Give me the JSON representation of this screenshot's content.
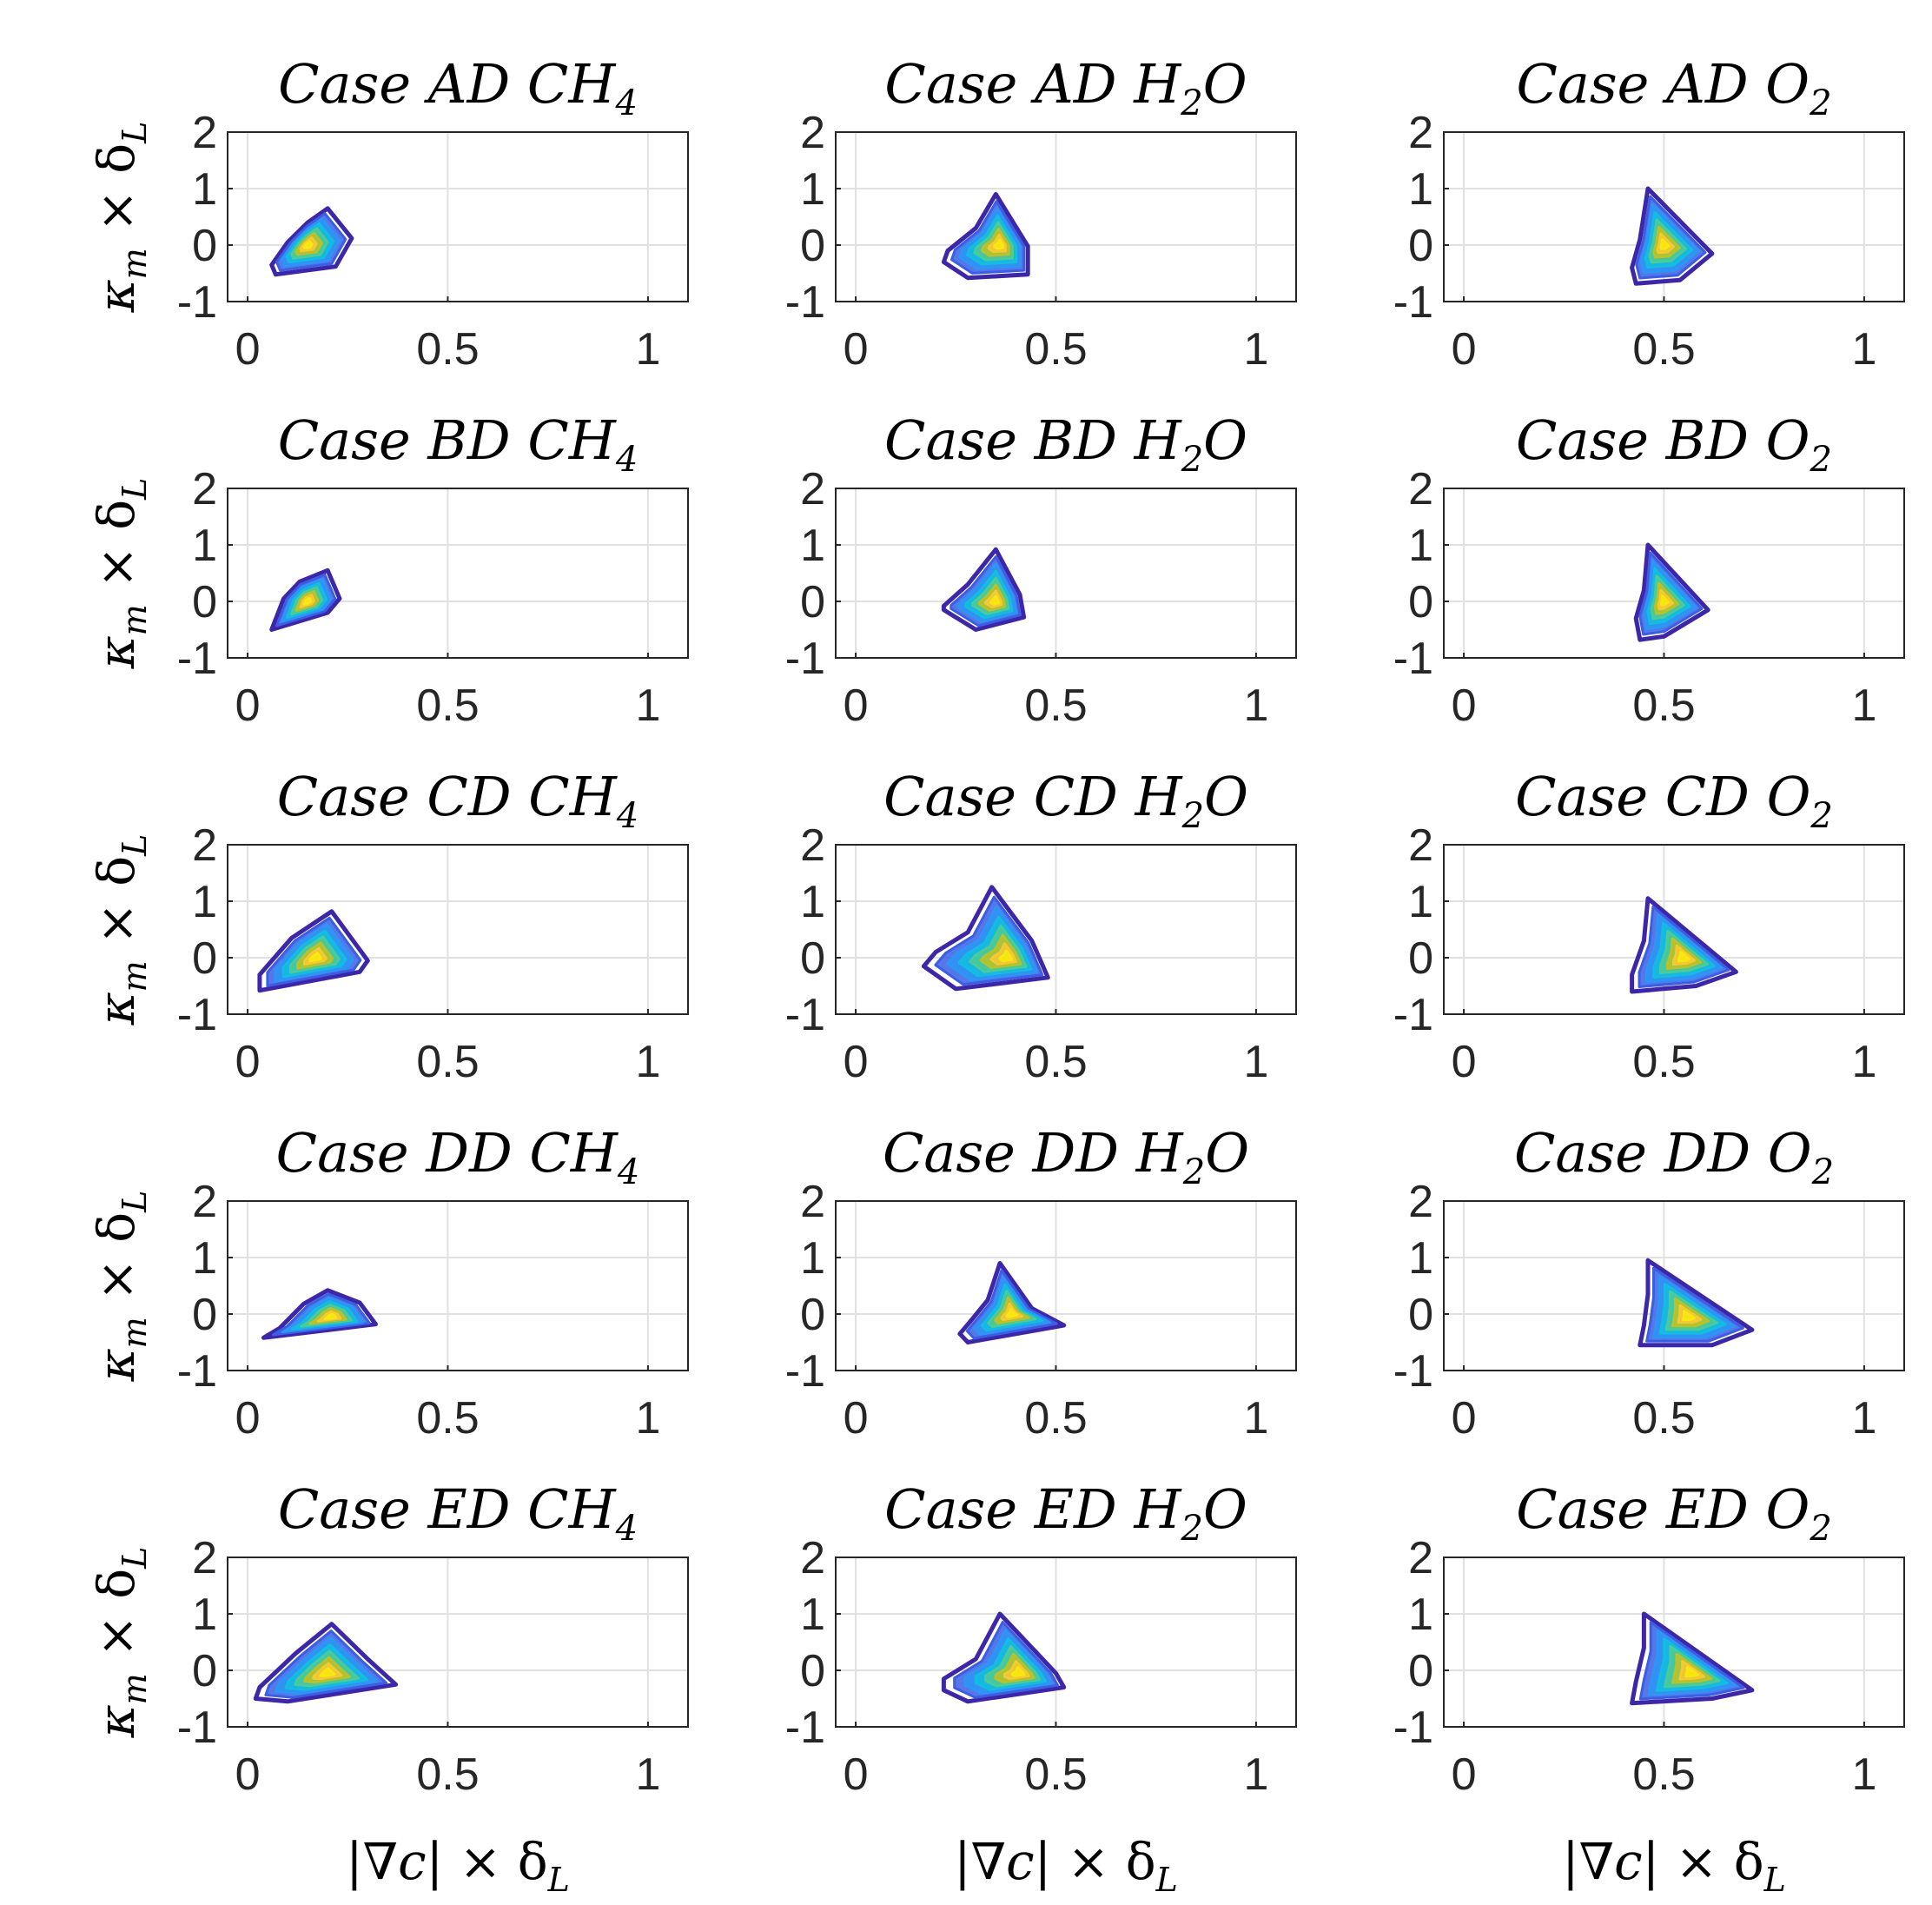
{
  "chart_data": {
    "type": "contour",
    "layout": {
      "rows": 5,
      "cols": 3
    },
    "xlim": [
      -0.05,
      1.1
    ],
    "ylim": [
      -1,
      2
    ],
    "xticks": [
      0,
      0.5,
      1
    ],
    "xtick_labels": [
      "0",
      "0.5",
      "1"
    ],
    "yticks": [
      -1,
      0,
      1,
      2
    ],
    "ytick_labels": [
      "-1",
      "0",
      "1",
      "2"
    ],
    "grid": true,
    "ylabel": {
      "main": "κ",
      "main_sub": "m",
      "times": " × δ",
      "sub": "L"
    },
    "xlabel": {
      "main": "|∇c|",
      "times": " × δ",
      "sub": "L"
    },
    "colormap": [
      "#3e26a8",
      "#3a5fe4",
      "#2c95f5",
      "#13bde0",
      "#4ccb96",
      "#bbc229",
      "#f6c834",
      "#f9e80f"
    ],
    "panels": [
      {
        "title": "Case AD CH",
        "sub": "4",
        "suffix": "",
        "row": 0,
        "col": 0,
        "center": [
          0.15,
          0.0
        ],
        "outer": [
          [
            0.07,
            -0.52
          ],
          [
            0.22,
            -0.38
          ],
          [
            0.26,
            0.12
          ],
          [
            0.2,
            0.65
          ],
          [
            0.15,
            0.4
          ],
          [
            0.1,
            0.05
          ],
          [
            0.06,
            -0.35
          ]
        ]
      },
      {
        "title": "Case AD H",
        "sub": "2",
        "suffix": "O",
        "row": 0,
        "col": 1,
        "center": [
          0.36,
          0.0
        ],
        "outer": [
          [
            0.22,
            -0.3
          ],
          [
            0.28,
            -0.58
          ],
          [
            0.43,
            -0.52
          ],
          [
            0.43,
            -0.02
          ],
          [
            0.35,
            0.9
          ],
          [
            0.3,
            0.3
          ],
          [
            0.23,
            -0.1
          ]
        ]
      },
      {
        "title": "Case AD O",
        "sub": "2",
        "suffix": "",
        "row": 0,
        "col": 2,
        "center": [
          0.5,
          0.0
        ],
        "outer": [
          [
            0.46,
            1.0
          ],
          [
            0.62,
            -0.15
          ],
          [
            0.54,
            -0.62
          ],
          [
            0.43,
            -0.68
          ],
          [
            0.42,
            -0.4
          ],
          [
            0.44,
            0.1
          ]
        ]
      },
      {
        "title": "Case BD CH",
        "sub": "4",
        "suffix": "",
        "row": 1,
        "col": 0,
        "center": [
          0.15,
          0.0
        ],
        "outer": [
          [
            0.06,
            -0.5
          ],
          [
            0.2,
            -0.2
          ],
          [
            0.23,
            0.05
          ],
          [
            0.2,
            0.55
          ],
          [
            0.13,
            0.35
          ],
          [
            0.09,
            0.05
          ]
        ]
      },
      {
        "title": "Case BD H",
        "sub": "2",
        "suffix": "O",
        "row": 1,
        "col": 1,
        "center": [
          0.35,
          0.0
        ],
        "outer": [
          [
            0.22,
            -0.15
          ],
          [
            0.3,
            -0.5
          ],
          [
            0.42,
            -0.28
          ],
          [
            0.41,
            0.12
          ],
          [
            0.35,
            0.92
          ],
          [
            0.28,
            0.3
          ],
          [
            0.22,
            -0.08
          ]
        ]
      },
      {
        "title": "Case BD O",
        "sub": "2",
        "suffix": "",
        "row": 1,
        "col": 2,
        "center": [
          0.5,
          0.0
        ],
        "outer": [
          [
            0.46,
            1.0
          ],
          [
            0.61,
            -0.15
          ],
          [
            0.5,
            -0.62
          ],
          [
            0.44,
            -0.68
          ],
          [
            0.43,
            -0.3
          ],
          [
            0.45,
            0.2
          ]
        ]
      },
      {
        "title": "Case CD CH",
        "sub": "4",
        "suffix": "",
        "row": 2,
        "col": 0,
        "center": [
          0.17,
          0.0
        ],
        "outer": [
          [
            0.03,
            -0.58
          ],
          [
            0.28,
            -0.25
          ],
          [
            0.3,
            -0.05
          ],
          [
            0.21,
            0.82
          ],
          [
            0.11,
            0.35
          ],
          [
            0.03,
            -0.3
          ]
        ]
      },
      {
        "title": "Case CD H",
        "sub": "2",
        "suffix": "O",
        "row": 2,
        "col": 1,
        "center": [
          0.38,
          0.0
        ],
        "outer": [
          [
            0.17,
            -0.15
          ],
          [
            0.25,
            -0.55
          ],
          [
            0.48,
            -0.35
          ],
          [
            0.44,
            0.3
          ],
          [
            0.34,
            1.25
          ],
          [
            0.28,
            0.45
          ],
          [
            0.2,
            0.1
          ]
        ]
      },
      {
        "title": "Case CD O",
        "sub": "2",
        "suffix": "",
        "row": 2,
        "col": 2,
        "center": [
          0.55,
          0.0
        ],
        "outer": [
          [
            0.46,
            1.05
          ],
          [
            0.68,
            -0.25
          ],
          [
            0.58,
            -0.5
          ],
          [
            0.42,
            -0.6
          ],
          [
            0.42,
            -0.3
          ],
          [
            0.45,
            0.3
          ]
        ]
      },
      {
        "title": "Case DD CH",
        "sub": "4",
        "suffix": "",
        "row": 3,
        "col": 0,
        "center": [
          0.21,
          -0.05
        ],
        "outer": [
          [
            0.04,
            -0.42
          ],
          [
            0.32,
            -0.18
          ],
          [
            0.28,
            0.2
          ],
          [
            0.2,
            0.42
          ],
          [
            0.14,
            0.18
          ],
          [
            0.08,
            -0.25
          ]
        ]
      },
      {
        "title": "Case DD H",
        "sub": "2",
        "suffix": "O",
        "row": 3,
        "col": 1,
        "center": [
          0.39,
          0.0
        ],
        "outer": [
          [
            0.26,
            -0.35
          ],
          [
            0.28,
            -0.5
          ],
          [
            0.52,
            -0.2
          ],
          [
            0.44,
            0.1
          ],
          [
            0.36,
            0.9
          ],
          [
            0.33,
            0.25
          ],
          [
            0.29,
            -0.1
          ]
        ]
      },
      {
        "title": "Case DD O",
        "sub": "2",
        "suffix": "",
        "row": 3,
        "col": 2,
        "center": [
          0.56,
          -0.05
        ],
        "outer": [
          [
            0.46,
            0.95
          ],
          [
            0.72,
            -0.28
          ],
          [
            0.62,
            -0.55
          ],
          [
            0.44,
            -0.55
          ],
          [
            0.45,
            -0.2
          ],
          [
            0.46,
            0.35
          ]
        ]
      },
      {
        "title": "Case ED CH",
        "sub": "4",
        "suffix": "",
        "row": 4,
        "col": 0,
        "center": [
          0.2,
          -0.05
        ],
        "outer": [
          [
            0.02,
            -0.5
          ],
          [
            0.1,
            -0.55
          ],
          [
            0.37,
            -0.25
          ],
          [
            0.3,
            0.2
          ],
          [
            0.21,
            0.82
          ],
          [
            0.12,
            0.3
          ],
          [
            0.03,
            -0.3
          ]
        ]
      },
      {
        "title": "Case ED H",
        "sub": "2",
        "suffix": "O",
        "row": 4,
        "col": 1,
        "center": [
          0.41,
          -0.05
        ],
        "outer": [
          [
            0.22,
            -0.35
          ],
          [
            0.28,
            -0.55
          ],
          [
            0.52,
            -0.3
          ],
          [
            0.5,
            -0.05
          ],
          [
            0.36,
            1.0
          ],
          [
            0.3,
            0.2
          ],
          [
            0.22,
            -0.15
          ]
        ]
      },
      {
        "title": "Case ED O",
        "sub": "2",
        "suffix": "",
        "row": 4,
        "col": 2,
        "center": [
          0.57,
          -0.05
        ],
        "outer": [
          [
            0.45,
            1.0
          ],
          [
            0.72,
            -0.35
          ],
          [
            0.62,
            -0.5
          ],
          [
            0.42,
            -0.58
          ],
          [
            0.43,
            -0.2
          ],
          [
            0.45,
            0.4
          ]
        ]
      }
    ]
  }
}
